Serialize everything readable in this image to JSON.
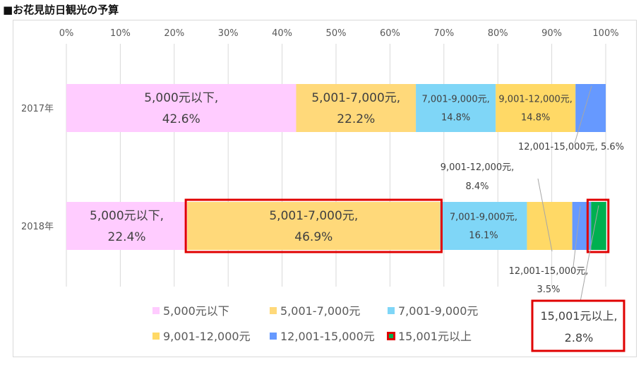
{
  "title": "■お花見訪日観光の予算",
  "chart_data": {
    "type": "bar",
    "orientation": "horizontal",
    "stacked": "percent",
    "x_ticks": [
      "0%",
      "10%",
      "20%",
      "30%",
      "40%",
      "50%",
      "60%",
      "70%",
      "80%",
      "90%",
      "100%"
    ],
    "xlim": [
      0,
      100
    ],
    "grid": true,
    "legend_position": "bottom",
    "categories": [
      "2017年",
      "2018年"
    ],
    "series": [
      {
        "name": "5,000元以下",
        "color": "#ffccff",
        "values": [
          42.6,
          22.4
        ]
      },
      {
        "name": "5,001-7,000元",
        "color": "#ffd97a",
        "values": [
          22.2,
          46.9
        ]
      },
      {
        "name": "7,001-9,000元",
        "color": "#7fd6f7",
        "values": [
          14.8,
          16.1
        ]
      },
      {
        "name": "9,001-12,000元",
        "color": "#ffd966",
        "values": [
          14.8,
          8.4
        ]
      },
      {
        "name": "12,001-15,000元",
        "color": "#6699ff",
        "values": [
          5.6,
          3.5
        ]
      },
      {
        "name": "15,001元以上",
        "color": "#00b050",
        "values": [
          0,
          2.8
        ]
      }
    ],
    "data_labels": [
      {
        "row": 0,
        "series": 0,
        "line1": "5,000元以下,",
        "line2": "42.6%"
      },
      {
        "row": 0,
        "series": 1,
        "line1": "5,001-7,000元,",
        "line2": "22.2%"
      },
      {
        "row": 0,
        "series": 2,
        "line1": "7,001-9,000元,",
        "line2": "14.8%"
      },
      {
        "row": 0,
        "series": 3,
        "line1": "9,001-12,000元,",
        "line2": "14.8%"
      },
      {
        "row": 0,
        "series": 4,
        "line1": "12,001-15,000元, 5.6%",
        "line2": ""
      },
      {
        "row": 1,
        "series": 0,
        "line1": "5,000元以下,",
        "line2": "22.4%"
      },
      {
        "row": 1,
        "series": 1,
        "line1": "5,001-7,000元,",
        "line2": "46.9%"
      },
      {
        "row": 1,
        "series": 2,
        "line1": "7,001-9,000元,",
        "line2": "16.1%"
      },
      {
        "row": 1,
        "series": 3,
        "line1": "9,001-12,000元,",
        "line2": "8.4%"
      },
      {
        "row": 1,
        "series": 4,
        "line1": "12,001-15,000元,",
        "line2": "3.5%"
      },
      {
        "row": 1,
        "series": 5,
        "line1": "15,001元以上,",
        "line2": "2.8%"
      }
    ],
    "highlight_color": "#e00000",
    "highlighted": [
      {
        "row": 1,
        "series": 1
      },
      {
        "row": 1,
        "series": 5
      }
    ]
  }
}
